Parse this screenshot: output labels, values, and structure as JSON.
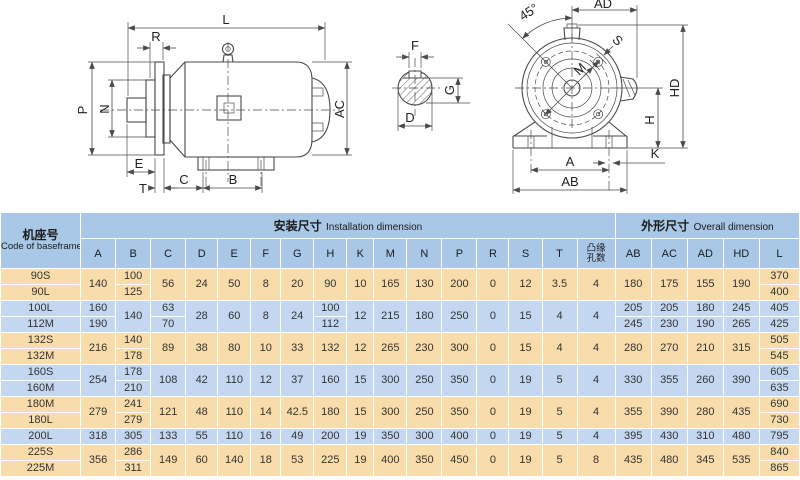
{
  "colors": {
    "header_blue": "#a9c7e7",
    "row_tan": "#f8dcaa",
    "row_blue": "#c3d8f0",
    "grid_white": "#ffffff",
    "line_dark": "#4a4a4a",
    "text_dark": "#333333"
  },
  "drawings": {
    "side_view": {
      "labels": {
        "L": "L",
        "R": "R",
        "P": "P",
        "N": "N",
        "E": "E",
        "T": "T",
        "C": "C",
        "B": "B",
        "AC": "AC"
      }
    },
    "shaft_section": {
      "labels": {
        "F": "F",
        "G": "G",
        "D": "D"
      }
    },
    "front_view": {
      "labels": {
        "angle": "45°",
        "AD": "AD",
        "S": "S",
        "M": "M",
        "HD": "HD",
        "H": "H",
        "K": "K",
        "A": "A",
        "AB": "AB"
      }
    }
  },
  "table": {
    "header": {
      "baseframe_zh": "机座号",
      "baseframe_en": "Code of baseframe",
      "installation_zh": "安装尺寸",
      "installation_en": "Installation dimension",
      "overall_zh": "外形尺寸",
      "overall_en": "Overall dimension",
      "columns": [
        "A",
        "B",
        "C",
        "D",
        "E",
        "F",
        "G",
        "H",
        "K",
        "M",
        "N",
        "P",
        "R",
        "S",
        "T"
      ],
      "flange_holes_line1": "凸缘",
      "flange_holes_line2": "孔数",
      "overall_columns": [
        "AB",
        "AC",
        "AD",
        "HD",
        "L"
      ]
    },
    "rows": [
      {
        "band": "tan",
        "cells": [
          [
            "90S",
            1
          ],
          [
            "140",
            2
          ],
          [
            "100",
            1
          ],
          [
            "56",
            2
          ],
          [
            "24",
            2
          ],
          [
            "50",
            2
          ],
          [
            "8",
            2
          ],
          [
            "20",
            2
          ],
          [
            "90",
            2
          ],
          [
            "10",
            2
          ],
          [
            "165",
            2
          ],
          [
            "130",
            2
          ],
          [
            "200",
            2
          ],
          [
            "0",
            2
          ],
          [
            "12",
            2
          ],
          [
            "3.5",
            2
          ],
          [
            "4",
            2
          ],
          [
            "180",
            2
          ],
          [
            "175",
            2
          ],
          [
            "155",
            2
          ],
          [
            "190",
            2
          ],
          [
            "370",
            1
          ]
        ]
      },
      {
        "band": "tan",
        "cells": [
          [
            "90L",
            1
          ],
          [
            "125",
            1
          ],
          [
            "400",
            1
          ]
        ]
      },
      {
        "band": "blue",
        "cells": [
          [
            "100L",
            1
          ],
          [
            "160",
            1
          ],
          [
            "140",
            2
          ],
          [
            "63",
            1
          ],
          [
            "28",
            2
          ],
          [
            "60",
            2
          ],
          [
            "8",
            2
          ],
          [
            "24",
            2
          ],
          [
            "100",
            1
          ],
          [
            "12",
            2
          ],
          [
            "215",
            2
          ],
          [
            "180",
            2
          ],
          [
            "250",
            2
          ],
          [
            "0",
            2
          ],
          [
            "15",
            2
          ],
          [
            "4",
            2
          ],
          [
            "4",
            2
          ],
          [
            "205",
            1
          ],
          [
            "205",
            1
          ],
          [
            "180",
            1
          ],
          [
            "245",
            1
          ],
          [
            "405",
            1
          ]
        ]
      },
      {
        "band": "blue",
        "cells": [
          [
            "112M",
            1
          ],
          [
            "190",
            1
          ],
          [
            "70",
            1
          ],
          [
            "112",
            1
          ],
          [
            "245",
            1
          ],
          [
            "230",
            1
          ],
          [
            "190",
            1
          ],
          [
            "265",
            1
          ],
          [
            "425",
            1
          ]
        ]
      },
      {
        "band": "tan",
        "cells": [
          [
            "132S",
            1
          ],
          [
            "216",
            2
          ],
          [
            "140",
            1
          ],
          [
            "89",
            2
          ],
          [
            "38",
            2
          ],
          [
            "80",
            2
          ],
          [
            "10",
            2
          ],
          [
            "33",
            2
          ],
          [
            "132",
            2
          ],
          [
            "12",
            2
          ],
          [
            "265",
            2
          ],
          [
            "230",
            2
          ],
          [
            "300",
            2
          ],
          [
            "0",
            2
          ],
          [
            "15",
            2
          ],
          [
            "4",
            2
          ],
          [
            "4",
            2
          ],
          [
            "280",
            2
          ],
          [
            "270",
            2
          ],
          [
            "210",
            2
          ],
          [
            "315",
            2
          ],
          [
            "505",
            1
          ]
        ]
      },
      {
        "band": "tan",
        "cells": [
          [
            "132M",
            1
          ],
          [
            "178",
            1
          ],
          [
            "545",
            1
          ]
        ]
      },
      {
        "band": "blue",
        "cells": [
          [
            "160S",
            1
          ],
          [
            "254",
            2
          ],
          [
            "178",
            1
          ],
          [
            "108",
            2
          ],
          [
            "42",
            2
          ],
          [
            "110",
            2
          ],
          [
            "12",
            2
          ],
          [
            "37",
            2
          ],
          [
            "160",
            2
          ],
          [
            "15",
            2
          ],
          [
            "300",
            2
          ],
          [
            "250",
            2
          ],
          [
            "350",
            2
          ],
          [
            "0",
            2
          ],
          [
            "19",
            2
          ],
          [
            "5",
            2
          ],
          [
            "4",
            2
          ],
          [
            "330",
            2
          ],
          [
            "355",
            2
          ],
          [
            "260",
            2
          ],
          [
            "390",
            2
          ],
          [
            "605",
            1
          ]
        ]
      },
      {
        "band": "blue",
        "cells": [
          [
            "160M",
            1
          ],
          [
            "210",
            1
          ],
          [
            "635",
            1
          ]
        ]
      },
      {
        "band": "tan",
        "cells": [
          [
            "180M",
            1
          ],
          [
            "279",
            2
          ],
          [
            "241",
            1
          ],
          [
            "121",
            2
          ],
          [
            "48",
            2
          ],
          [
            "110",
            2
          ],
          [
            "14",
            2
          ],
          [
            "42.5",
            2
          ],
          [
            "180",
            2
          ],
          [
            "15",
            2
          ],
          [
            "300",
            2
          ],
          [
            "250",
            2
          ],
          [
            "350",
            2
          ],
          [
            "0",
            2
          ],
          [
            "19",
            2
          ],
          [
            "5",
            2
          ],
          [
            "4",
            2
          ],
          [
            "355",
            2
          ],
          [
            "390",
            2
          ],
          [
            "280",
            2
          ],
          [
            "435",
            2
          ],
          [
            "690",
            1
          ]
        ]
      },
      {
        "band": "tan",
        "cells": [
          [
            "180L",
            1
          ],
          [
            "279",
            1
          ],
          [
            "730",
            1
          ]
        ]
      },
      {
        "band": "blue",
        "cells": [
          [
            "200L",
            1
          ],
          [
            "318",
            1
          ],
          [
            "305",
            1
          ],
          [
            "133",
            1
          ],
          [
            "55",
            1
          ],
          [
            "110",
            1
          ],
          [
            "16",
            1
          ],
          [
            "49",
            1
          ],
          [
            "200",
            1
          ],
          [
            "19",
            1
          ],
          [
            "350",
            1
          ],
          [
            "300",
            1
          ],
          [
            "400",
            1
          ],
          [
            "0",
            1
          ],
          [
            "19",
            1
          ],
          [
            "5",
            1
          ],
          [
            "4",
            1
          ],
          [
            "395",
            1
          ],
          [
            "430",
            1
          ],
          [
            "310",
            1
          ],
          [
            "480",
            1
          ],
          [
            "795",
            1
          ]
        ]
      },
      {
        "band": "tan",
        "cells": [
          [
            "225S",
            1
          ],
          [
            "356",
            2
          ],
          [
            "286",
            1
          ],
          [
            "149",
            2
          ],
          [
            "60",
            2
          ],
          [
            "140",
            2
          ],
          [
            "18",
            2
          ],
          [
            "53",
            2
          ],
          [
            "225",
            2
          ],
          [
            "19",
            2
          ],
          [
            "400",
            2
          ],
          [
            "350",
            2
          ],
          [
            "450",
            2
          ],
          [
            "0",
            2
          ],
          [
            "19",
            2
          ],
          [
            "5",
            2
          ],
          [
            "8",
            2
          ],
          [
            "435",
            2
          ],
          [
            "480",
            2
          ],
          [
            "345",
            2
          ],
          [
            "535",
            2
          ],
          [
            "840",
            1
          ]
        ]
      },
      {
        "band": "tan",
        "cells": [
          [
            "225M",
            1
          ],
          [
            "311",
            1
          ],
          [
            "865",
            1
          ]
        ]
      }
    ]
  }
}
